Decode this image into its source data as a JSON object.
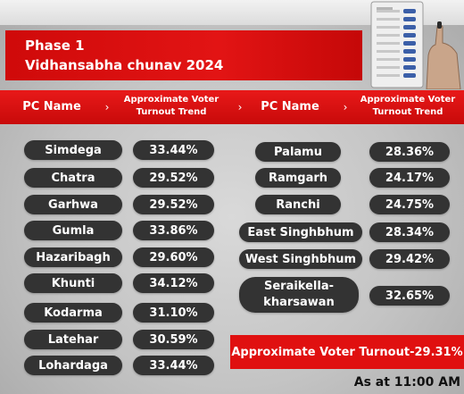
{
  "title": {
    "line1": "Phase 1",
    "line2": "Vidhansabha chunav 2024"
  },
  "header": {
    "pc_name": "PC Name",
    "trend_line1": "Approximate Voter",
    "trend_line2": "Turnout Trend"
  },
  "left_table": [
    {
      "name": "Simdega",
      "value": "33.44%"
    },
    {
      "name": "Chatra",
      "value": "29.52%"
    },
    {
      "name": "Garhwa",
      "value": "29.52%"
    },
    {
      "name": "Gumla",
      "value": "33.86%"
    },
    {
      "name": "Hazaribagh",
      "value": "29.60%"
    },
    {
      "name": "Khunti",
      "value": "34.12%"
    },
    {
      "name": "Kodarma",
      "value": "31.10%"
    },
    {
      "name": "Latehar",
      "value": "30.59%"
    },
    {
      "name": "Lohardaga",
      "value": "33.44%"
    }
  ],
  "right_table": [
    {
      "name": "Palamu",
      "value": "28.36%"
    },
    {
      "name": "Ramgarh",
      "value": "24.17%"
    },
    {
      "name": "Ranchi",
      "value": "24.75%"
    },
    {
      "name": "East Singhbhum",
      "value": "28.34%"
    },
    {
      "name": "West Singhbhum",
      "value": "29.42%"
    },
    {
      "name": "Seraikella-kharsawan",
      "name_line1": "Seraikella-",
      "name_line2": "kharsawan",
      "value": "32.65%"
    }
  ],
  "summary": "Approximate Voter Turnout-29.31%",
  "timestamp": "As at 11:00 AM",
  "colors": {
    "accent_red": "#e01010",
    "pill_bg": "#333333",
    "background": "#c4c4c4"
  }
}
